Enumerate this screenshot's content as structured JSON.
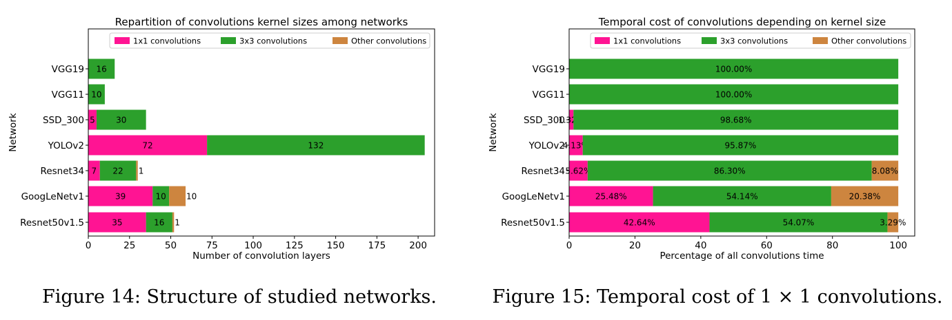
{
  "colors": {
    "c1x1": "#ff1493",
    "c3x3": "#2ca02c",
    "cother": "#cd853f"
  },
  "captions": [
    "Figure 14: Structure of studied networks.",
    "Figure 15: Temporal cost of 1 × 1 convolutions."
  ],
  "chart_data": [
    {
      "type": "bar",
      "orientation": "horizontal",
      "stacked": true,
      "title": "Repartition of convolutions kernel sizes among networks",
      "xlabel": "Number of convolution layers",
      "ylabel": "Network",
      "xlim": [
        0,
        210
      ],
      "xticks": [
        "0",
        "25",
        "50",
        "75",
        "100",
        "125",
        "150",
        "175",
        "200"
      ],
      "xtick_values": [
        0,
        25,
        50,
        75,
        100,
        125,
        150,
        175,
        200
      ],
      "legend_position": "top",
      "categories": [
        "VGG19",
        "VGG11",
        "SSD_300",
        "YOLOv2",
        "Resnet34",
        "GoogLeNetv1",
        "Resnet50v1.5"
      ],
      "series": [
        {
          "name": "1x1 convolutions",
          "color_key": "c1x1",
          "values": [
            0,
            0,
            5,
            72,
            7,
            39,
            35
          ],
          "labels": [
            "",
            "",
            "5",
            "72",
            "7",
            "39",
            "35"
          ]
        },
        {
          "name": "3x3 convolutions",
          "color_key": "c3x3",
          "values": [
            16,
            10,
            30,
            132,
            22,
            10,
            16
          ],
          "labels": [
            "16",
            "10",
            "30",
            "132",
            "22",
            "10",
            "16"
          ]
        },
        {
          "name": "Other convolutions",
          "color_key": "cother",
          "values": [
            0,
            0,
            0,
            0,
            1,
            10,
            1
          ],
          "labels": [
            "",
            "",
            "",
            "",
            "1",
            "10",
            "1"
          ]
        }
      ]
    },
    {
      "type": "bar",
      "orientation": "horizontal",
      "stacked": true,
      "title": "Temporal cost of convolutions depending on kernel size",
      "xlabel": "Percentage of all convolutions time",
      "ylabel": "Network",
      "xlim": [
        0,
        105
      ],
      "xticks": [
        "0",
        "20",
        "40",
        "60",
        "80",
        "100"
      ],
      "xtick_values": [
        0,
        20,
        40,
        60,
        80,
        100
      ],
      "legend_position": "top",
      "categories": [
        "VGG19",
        "VGG11",
        "SSD_300",
        "YOLOv2",
        "Resnet34",
        "GoogLeNetv1",
        "Resnet50v1.5"
      ],
      "series": [
        {
          "name": "1x1 convolutions",
          "color_key": "c1x1",
          "values": [
            0,
            0,
            1.32,
            4.13,
            5.62,
            25.48,
            42.64
          ],
          "labels": [
            "",
            "",
            "1.32%",
            "4.13%",
            "5.62%",
            "25.48%",
            "42.64%"
          ]
        },
        {
          "name": "3x3 convolutions",
          "color_key": "c3x3",
          "values": [
            100,
            100,
            98.68,
            95.87,
            86.3,
            54.14,
            54.07
          ],
          "labels": [
            "100.00%",
            "100.00%",
            "98.68%",
            "95.87%",
            "86.30%",
            "54.14%",
            "54.07%"
          ]
        },
        {
          "name": "Other convolutions",
          "color_key": "cother",
          "values": [
            0,
            0,
            0,
            0,
            8.08,
            20.38,
            3.29
          ],
          "labels": [
            "",
            "",
            "",
            "",
            "8.08%",
            "20.38%",
            "3.29%"
          ]
        }
      ]
    }
  ]
}
